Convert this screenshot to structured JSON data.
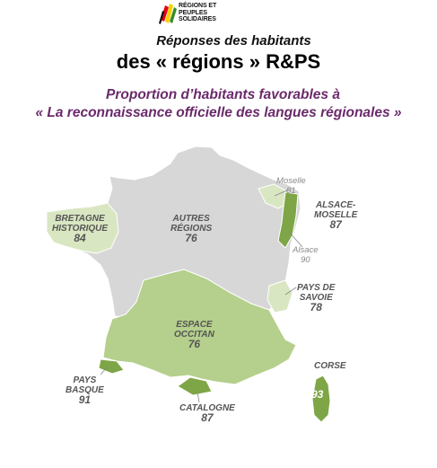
{
  "logo": {
    "name": "regions-et-peuples-solidaires-logo",
    "lines": [
      "RÉGIONS ET",
      "PEUPLES",
      "SOLIDAIRES"
    ],
    "colors": [
      "#e2001a",
      "#f5d100",
      "#3a8a2a",
      "#111111"
    ]
  },
  "header": {
    "line1": "Réponses des habitants",
    "line2": "des « régions » R&PS"
  },
  "subtitle": {
    "line1": "Proportion d’habitants favorables à",
    "line2": "« La reconnaissance officielle des langues régionales »"
  },
  "colors": {
    "autres_regions": "#d7d7d7",
    "rps_region": "#b5cf8c",
    "rps_region_light": "#d9e6c2",
    "rps_region_dark": "#7ea546",
    "title_purple": "#6a2a6a"
  },
  "regions": [
    {
      "key": "bretagne",
      "label": [
        "BRETAGNE",
        "HISTORIQUE"
      ],
      "value": "84"
    },
    {
      "key": "autres",
      "label": [
        "AUTRES",
        "RÉGIONS"
      ],
      "value": "76"
    },
    {
      "key": "moselle",
      "label": [
        "Moselle"
      ],
      "value": "81"
    },
    {
      "key": "alsace_moselle",
      "label": [
        "ALSACE-",
        "MOSELLE"
      ],
      "value": "87"
    },
    {
      "key": "alsace",
      "label": [
        "Alsace"
      ],
      "value": "90"
    },
    {
      "key": "savoie",
      "label": [
        "PAYS DE",
        "SAVOIE"
      ],
      "value": "78"
    },
    {
      "key": "occitan",
      "label": [
        "ESPACE",
        "OCCITAN"
      ],
      "value": "76"
    },
    {
      "key": "basque",
      "label": [
        "PAYS",
        "BASQUE"
      ],
      "value": "91"
    },
    {
      "key": "catalogne",
      "label": [
        "CATALOGNE"
      ],
      "value": "87"
    },
    {
      "key": "corse",
      "label": [
        "CORSE"
      ],
      "value": "93"
    }
  ]
}
